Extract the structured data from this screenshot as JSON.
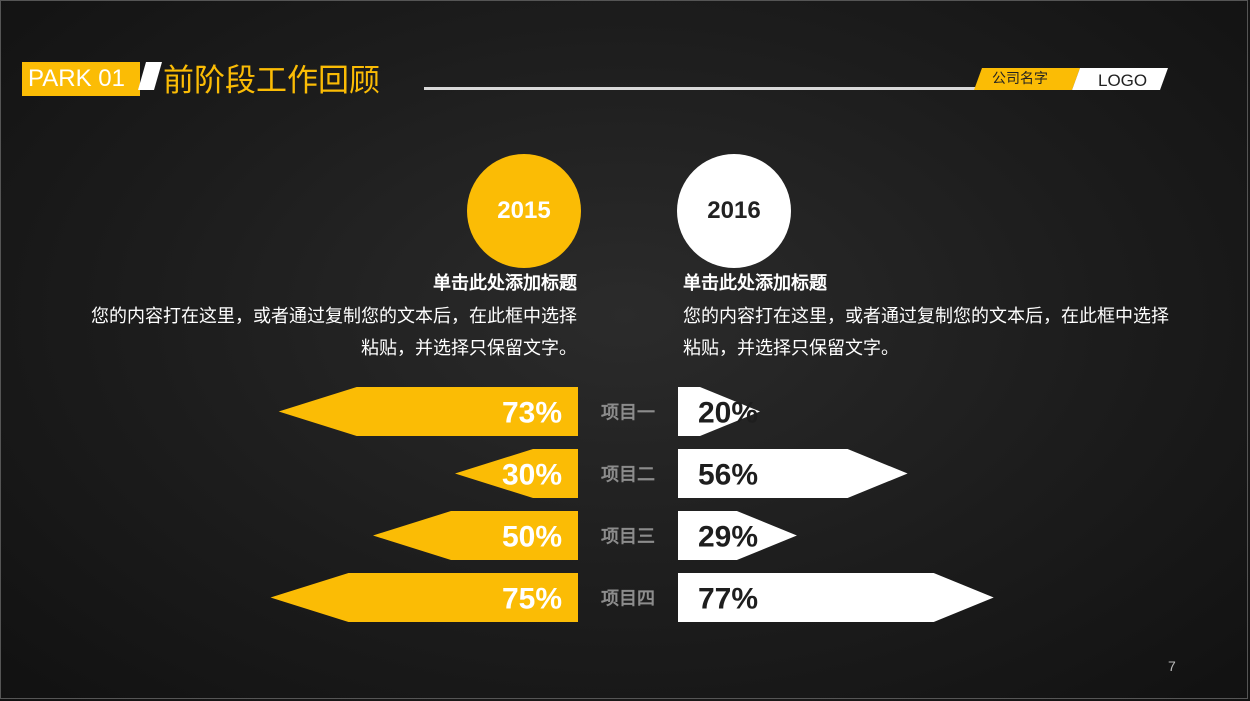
{
  "header": {
    "section_tag": "PARK 01",
    "title": "前阶段工作回顾",
    "company": "公司名字",
    "logo": "LOGO"
  },
  "colors": {
    "accent": "#fbbc05",
    "secondary": "#ffffff",
    "label_gray": "#8c8c8c"
  },
  "columns": [
    {
      "year": "2015",
      "heading": "单击此处添加标题",
      "body": "您的内容打在这里，或者通过复制您的文本后，在此框中选择粘贴，并选择只保留文字。"
    },
    {
      "year": "2016",
      "heading": "单击此处添加标题",
      "body": "您的内容打在这里，或者通过复制您的文本后，在此框中选择粘贴，并选择只保留文字。"
    }
  ],
  "chart_data": {
    "type": "bar",
    "orientation": "horizontal-diverging",
    "categories": [
      "项目一",
      "项目二",
      "项目三",
      "项目四"
    ],
    "series": [
      {
        "name": "2015",
        "values": [
          73,
          30,
          50,
          75
        ],
        "labels": [
          "73%",
          "30%",
          "50%",
          "75%"
        ],
        "direction": "left",
        "color": "#fbbc05"
      },
      {
        "name": "2016",
        "values": [
          20,
          56,
          29,
          77
        ],
        "labels": [
          "20%",
          "56%",
          "29%",
          "77%"
        ],
        "direction": "right",
        "color": "#ffffff"
      }
    ],
    "xlim": [
      0,
      100
    ],
    "grid": false
  },
  "footer": {
    "page_number": "7"
  }
}
